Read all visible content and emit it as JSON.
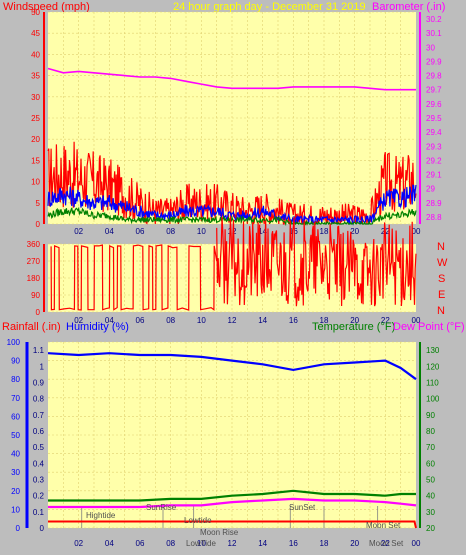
{
  "header": {
    "left_label": "Windspeed (mph)",
    "center_label": "24 hour graph day - December 31 2019",
    "right_label": "Barometer (.in)"
  },
  "lower_header": {
    "rainfall_label": "Rainfall (.in)",
    "humidity_label": "Humidity (%)",
    "temperature_label": "Temperature (°F)",
    "dewpoint_label": "Dew Point (°F)"
  },
  "direction_labels": [
    "N",
    "W",
    "S",
    "E",
    "N"
  ],
  "colors": {
    "background": "#bdbdbd",
    "plot": "#ffffaa",
    "grid": "#e0d070",
    "windspeed": "#ff0000",
    "avg_wind": "#0000ff",
    "low_wind": "#008000",
    "barometer": "#ff00ff",
    "direction": "#ff0000",
    "humidity": "#0000ff",
    "temperature": "#008000",
    "dewpoint": "#ff00ff",
    "rainfall": "#ff0000",
    "tide": "#808080"
  },
  "chart_data": [
    {
      "type": "line",
      "x_ticks": [
        "02",
        "04",
        "06",
        "08",
        "10",
        "12",
        "14",
        "16",
        "18",
        "20",
        "22",
        "00"
      ],
      "ylim_left": [
        0,
        50
      ],
      "left_ticks": [
        "0",
        "5",
        "10",
        "15",
        "20",
        "25",
        "30",
        "35",
        "40",
        "45",
        "50"
      ],
      "ylim_right": [
        28.75,
        30.25
      ],
      "right_ticks": [
        "28.8",
        "28.9",
        "29",
        "29.1",
        "29.2",
        "29.3",
        "29.4",
        "29.5",
        "29.6",
        "29.7",
        "29.8",
        "29.9",
        "30",
        "30.1",
        "30.2"
      ],
      "hours": [
        0,
        1,
        2,
        3,
        4,
        5,
        6,
        7,
        8,
        9,
        10,
        11,
        12,
        13,
        14,
        15,
        16,
        17,
        18,
        19,
        20,
        21,
        22,
        23,
        24
      ],
      "series": [
        {
          "name": "Windspeed (mph)",
          "axis": "left",
          "values": [
            11,
            12,
            11,
            10,
            9,
            7,
            5,
            3,
            3,
            5,
            5,
            5,
            4,
            3,
            4,
            3,
            2,
            2,
            2,
            2,
            2,
            2,
            10,
            9,
            11
          ]
        },
        {
          "name": "",
          "axis": "left",
          "values": [
            6,
            7,
            6,
            5,
            5,
            4,
            3,
            2,
            2,
            3,
            3,
            3,
            2,
            2,
            3,
            2,
            1,
            1,
            1,
            1,
            1,
            1,
            6,
            6,
            7
          ]
        },
        {
          "name": "",
          "axis": "left",
          "values": [
            2,
            3,
            3,
            2,
            2,
            1,
            1,
            1,
            1,
            1,
            1,
            1,
            1,
            1,
            1,
            1,
            0,
            0,
            0,
            0,
            0,
            0,
            2,
            2,
            3
          ]
        },
        {
          "name": "Barometer (.in)",
          "axis": "right",
          "values": [
            29.85,
            29.82,
            29.83,
            29.82,
            29.81,
            29.8,
            29.79,
            29.79,
            29.78,
            29.76,
            29.74,
            29.72,
            29.71,
            29.71,
            29.71,
            29.71,
            29.72,
            29.72,
            29.72,
            29.72,
            29.72,
            29.71,
            29.7,
            29.7,
            29.7
          ]
        }
      ]
    },
    {
      "type": "line",
      "x_ticks": [
        "02",
        "04",
        "06",
        "08",
        "10",
        "12",
        "14",
        "16",
        "18",
        "20",
        "22",
        "00"
      ],
      "ylim": [
        0,
        360
      ],
      "y_ticks": [
        "0",
        "90",
        "180",
        "270",
        "360"
      ],
      "hours": [
        11,
        12,
        13,
        14,
        15,
        16,
        17,
        18,
        19,
        20,
        21,
        22,
        23,
        24
      ],
      "series": [
        {
          "name": "",
          "values": [
            270,
            265,
            262,
            260,
            258,
            268,
            262,
            255,
            240,
            225,
            210,
            255,
            260,
            268
          ]
        }
      ],
      "note_values_first_half": "direction alternates between about 15 and 350 degrees from hour 0 to about hour 11"
    },
    {
      "type": "line",
      "x_ticks": [
        "02",
        "04",
        "06",
        "08",
        "10",
        "12",
        "14",
        "16",
        "18",
        "20",
        "22",
        "00"
      ],
      "ylim_left": [
        0,
        100
      ],
      "left_ticks": [
        "0",
        "10",
        "20",
        "30",
        "40",
        "50",
        "60",
        "70",
        "80",
        "90",
        "100"
      ],
      "ylim_rain": [
        0,
        1.15
      ],
      "rain_ticks": [
        "0",
        "0.1",
        "0.2",
        "0.3",
        "0.4",
        "0.5",
        "0.6",
        "0.7",
        "0.8",
        "0.9",
        "1",
        "1.1"
      ],
      "ylim_right": [
        20,
        135
      ],
      "right_ticks": [
        "20",
        "30",
        "40",
        "50",
        "60",
        "70",
        "80",
        "90",
        "100",
        "110",
        "120",
        "130"
      ],
      "hours": [
        0,
        2,
        4,
        6,
        8,
        10,
        12,
        14,
        16,
        18,
        20,
        22,
        23,
        24
      ],
      "series": [
        {
          "name": "Humidity (%)",
          "axis": "left",
          "values": [
            94,
            93,
            94,
            93,
            93,
            92,
            90,
            88,
            85,
            88,
            89,
            90,
            86,
            80
          ]
        },
        {
          "name": "Temperature (°F)",
          "axis": "right",
          "values": [
            37,
            37,
            37,
            37,
            38,
            38,
            40,
            41,
            43,
            41,
            41,
            40,
            41,
            41
          ]
        },
        {
          "name": "Dew Point (°F)",
          "axis": "right",
          "values": [
            33,
            33,
            33,
            33,
            34,
            34,
            36,
            37,
            38,
            37,
            37,
            36,
            35,
            34
          ]
        },
        {
          "name": "Rainfall (.in)",
          "axis": "rain",
          "values": [
            0.04,
            0.04,
            0.04,
            0.04,
            0.04,
            0.04,
            0.04,
            0.04,
            0.04,
            0.04,
            0.04,
            0.04,
            0.04,
            0.0
          ]
        }
      ],
      "annotations": [
        "Hightide",
        "SunRise",
        "Lowtide",
        "LowTide",
        "Moon Rise",
        "SunSet",
        "Moon Set",
        "Moon Set"
      ]
    }
  ]
}
